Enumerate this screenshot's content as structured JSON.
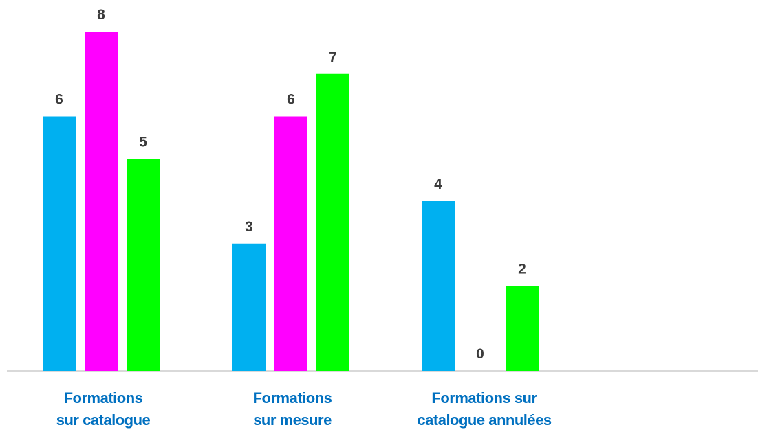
{
  "chart_data": {
    "type": "bar",
    "categories": [
      [
        "Formations",
        "sur catalogue"
      ],
      [
        "Formations",
        "sur mesure"
      ],
      [
        "Formations sur",
        "catalogue annulées"
      ]
    ],
    "series": [
      {
        "values": [
          6,
          3,
          4
        ],
        "color": "#00b0f0"
      },
      {
        "values": [
          8,
          6,
          0
        ],
        "color": "#ff00ff"
      },
      {
        "values": [
          5,
          7,
          2
        ],
        "color": "#00ff00"
      }
    ],
    "ylim": [
      0,
      8
    ],
    "grid": false,
    "legend": "none",
    "data_labels": true,
    "category_label_color": "#0070c0",
    "axis_color": "#d9d9d9"
  }
}
